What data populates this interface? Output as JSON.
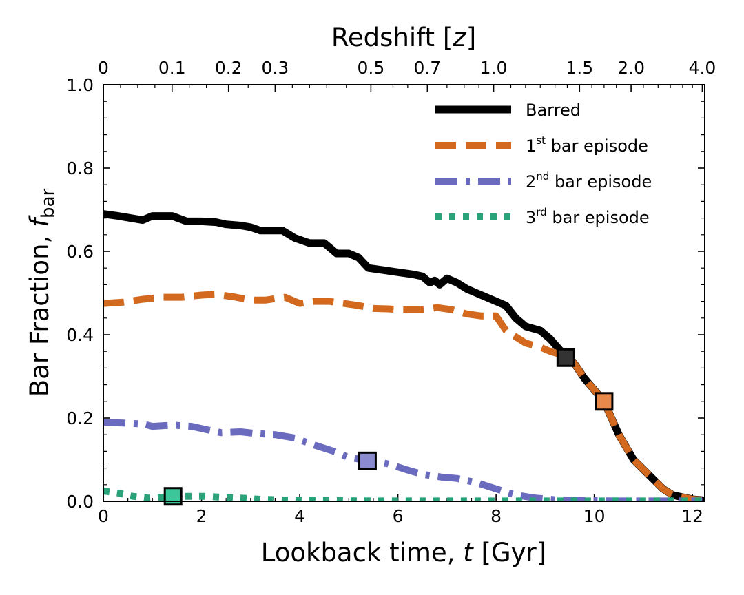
{
  "chart_data": {
    "type": "line",
    "xlabel_parts": [
      "Lookback time, ",
      "t",
      " [Gyr]"
    ],
    "ylabel_parts": [
      "Bar Fraction, ",
      "f",
      "bar"
    ],
    "top_axis_parts": [
      "Redshift [",
      "z",
      "]"
    ],
    "xlim": [
      0,
      12.25
    ],
    "ylim": [
      0,
      1.0
    ],
    "x_ticks": [
      0,
      2,
      4,
      6,
      8,
      10,
      12
    ],
    "x_tick_labels": [
      "0",
      "2",
      "4",
      "6",
      "8",
      "10",
      "12"
    ],
    "y_ticks": [
      0,
      0.2,
      0.4,
      0.6,
      0.8,
      1.0
    ],
    "y_tick_labels": [
      "0.0",
      "0.2",
      "0.4",
      "0.6",
      "0.8",
      "1.0"
    ],
    "top_ticks": [
      {
        "t": 0.0,
        "label": "0"
      },
      {
        "t": 1.4,
        "label": "0.1"
      },
      {
        "t": 2.55,
        "label": "0.2"
      },
      {
        "t": 3.5,
        "label": "0.3"
      },
      {
        "t": 5.45,
        "label": "0.5"
      },
      {
        "t": 6.6,
        "label": "0.7"
      },
      {
        "t": 7.95,
        "label": "1.0"
      },
      {
        "t": 9.7,
        "label": "1.5"
      },
      {
        "t": 10.75,
        "label": "2.0"
      },
      {
        "t": 12.2,
        "label": "4.0"
      }
    ],
    "legend_position": "top-right",
    "series": [
      {
        "name": "Barred",
        "legend_parts": [
          "Barred",
          "",
          ""
        ],
        "color": "#000000",
        "style": "solid",
        "x": [
          0,
          0.3,
          0.55,
          0.8,
          1.0,
          1.4,
          1.7,
          2.0,
          2.3,
          2.5,
          2.8,
          3.0,
          3.2,
          3.5,
          3.65,
          3.9,
          4.2,
          4.5,
          4.75,
          5.0,
          5.2,
          5.4,
          5.7,
          6.0,
          6.3,
          6.5,
          6.65,
          6.75,
          6.85,
          7.0,
          7.2,
          7.4,
          7.6,
          7.8,
          8.0,
          8.2,
          8.4,
          8.6,
          8.9,
          9.1,
          9.4,
          9.6,
          9.8,
          10.2,
          10.5,
          10.8,
          11.1,
          11.4,
          11.6,
          11.8,
          12.0,
          12.2
        ],
        "values": [
          0.69,
          0.685,
          0.68,
          0.675,
          0.685,
          0.685,
          0.672,
          0.672,
          0.67,
          0.665,
          0.662,
          0.658,
          0.65,
          0.65,
          0.65,
          0.632,
          0.62,
          0.62,
          0.595,
          0.595,
          0.585,
          0.56,
          0.555,
          0.55,
          0.545,
          0.54,
          0.525,
          0.53,
          0.52,
          0.535,
          0.525,
          0.51,
          0.5,
          0.49,
          0.48,
          0.47,
          0.44,
          0.42,
          0.41,
          0.39,
          0.35,
          0.33,
          0.295,
          0.24,
          0.16,
          0.1,
          0.065,
          0.03,
          0.015,
          0.01,
          0.005,
          0.003
        ]
      },
      {
        "name": "1st bar episode",
        "legend_parts": [
          "1",
          "st",
          " bar episode"
        ],
        "color": "#d2691e",
        "style": "dashed",
        "x": [
          0,
          0.4,
          0.8,
          1.2,
          1.6,
          2.0,
          2.3,
          2.7,
          3.0,
          3.3,
          3.7,
          4.0,
          4.3,
          4.6,
          4.9,
          5.2,
          5.5,
          5.8,
          6.1,
          6.5,
          6.8,
          7.1,
          7.4,
          7.7,
          8.0,
          8.2,
          8.4,
          8.6,
          8.9,
          9.1,
          9.4,
          9.6,
          9.8,
          10.2,
          10.5,
          10.8,
          11.1,
          11.4,
          11.6,
          11.8,
          12.0,
          12.2
        ],
        "values": [
          0.475,
          0.478,
          0.485,
          0.49,
          0.49,
          0.495,
          0.497,
          0.49,
          0.483,
          0.483,
          0.49,
          0.475,
          0.48,
          0.48,
          0.475,
          0.47,
          0.463,
          0.462,
          0.46,
          0.46,
          0.465,
          0.46,
          0.45,
          0.445,
          0.445,
          0.41,
          0.395,
          0.38,
          0.37,
          0.36,
          0.35,
          0.33,
          0.295,
          0.24,
          0.16,
          0.1,
          0.065,
          0.03,
          0.015,
          0.01,
          0.005,
          0.003
        ]
      },
      {
        "name": "2nd bar episode",
        "legend_parts": [
          "2",
          "nd",
          " bar episode"
        ],
        "color": "#6a6abf",
        "style": "dashdot",
        "x": [
          0,
          0.4,
          0.8,
          1.0,
          1.4,
          1.8,
          2.1,
          2.4,
          2.8,
          3.1,
          3.5,
          3.9,
          4.3,
          4.7,
          5.0,
          5.4,
          5.8,
          6.2,
          6.5,
          6.9,
          7.2,
          7.6,
          8.0,
          8.4,
          8.8,
          9.2,
          9.8,
          10.4,
          11.0,
          11.6,
          12.2
        ],
        "values": [
          0.19,
          0.188,
          0.186,
          0.18,
          0.183,
          0.18,
          0.172,
          0.165,
          0.167,
          0.163,
          0.16,
          0.152,
          0.135,
          0.12,
          0.105,
          0.098,
          0.09,
          0.075,
          0.065,
          0.058,
          0.055,
          0.045,
          0.03,
          0.015,
          0.008,
          0.004,
          0.002,
          0.001,
          0.001,
          0.001,
          0.001
        ]
      },
      {
        "name": "3rd bar episode",
        "legend_parts": [
          "3",
          "rd",
          " bar episode"
        ],
        "color": "#2aa37b",
        "style": "dotted",
        "x": [
          0,
          0.3,
          0.6,
          0.9,
          1.2,
          1.5,
          1.8,
          2.1,
          2.4,
          2.8,
          3.2,
          3.8,
          4.5,
          5.5,
          6.5,
          7.5,
          8.5,
          9.5,
          10.5,
          11.5,
          12.2
        ],
        "values": [
          0.025,
          0.02,
          0.012,
          0.008,
          0.01,
          0.012,
          0.012,
          0.012,
          0.01,
          0.008,
          0.005,
          0.003,
          0.002,
          0.001,
          0.001,
          0.001,
          0.001,
          0.001,
          0.001,
          0.001,
          0.001
        ]
      }
    ],
    "markers": [
      {
        "series": "Barred",
        "x": 9.42,
        "y": 0.345,
        "color": "#333333"
      },
      {
        "series": "1st bar episode",
        "x": 10.2,
        "y": 0.24,
        "color": "#e8884a"
      },
      {
        "series": "2nd bar episode",
        "x": 5.38,
        "y": 0.097,
        "color": "#8a8ad0"
      },
      {
        "series": "3rd bar episode",
        "x": 1.42,
        "y": 0.012,
        "color": "#3cc79a"
      }
    ]
  }
}
